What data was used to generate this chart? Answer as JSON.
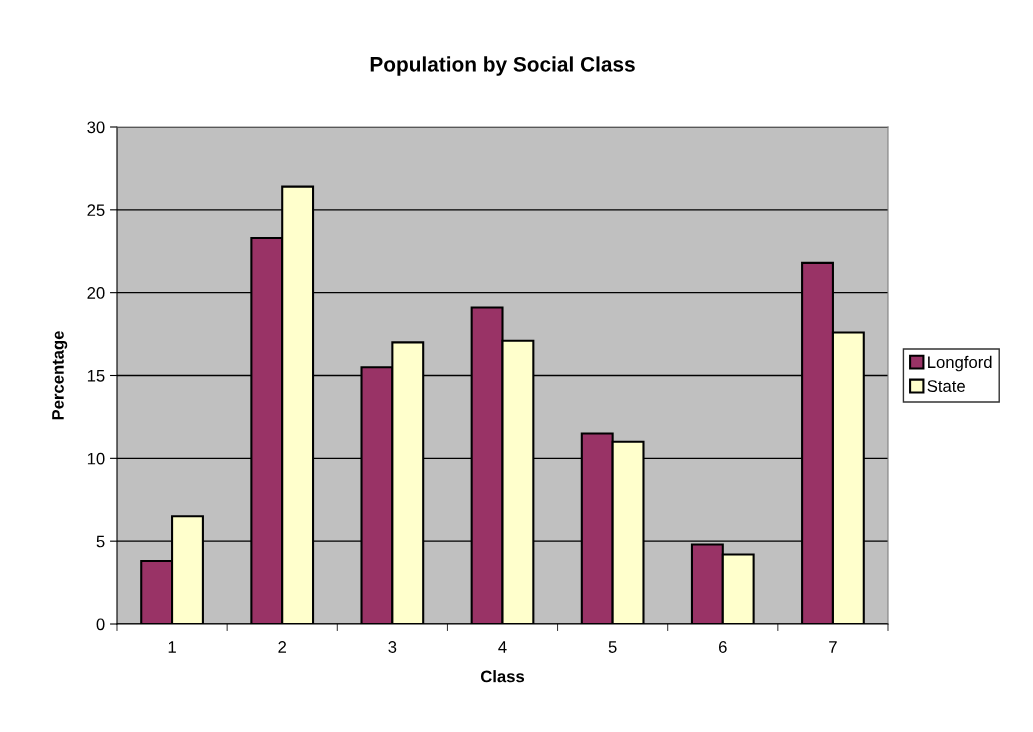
{
  "chart_data": {
    "type": "bar",
    "title": "Population by Social Class",
    "xlabel": "Class",
    "ylabel": "Percentage",
    "categories": [
      "1",
      "2",
      "3",
      "4",
      "5",
      "6",
      "7"
    ],
    "series": [
      {
        "name": "Longford",
        "color": "#993366",
        "values": [
          3.8,
          23.3,
          15.5,
          19.1,
          11.5,
          4.8,
          21.8
        ]
      },
      {
        "name": "State",
        "color": "#ffffcc",
        "values": [
          6.5,
          26.4,
          17.0,
          17.1,
          11.0,
          4.2,
          17.6
        ]
      }
    ],
    "ylim": [
      0,
      30
    ],
    "yticks": [
      0,
      5,
      10,
      15,
      20,
      25,
      30
    ],
    "grid": "y",
    "legend": "right"
  }
}
